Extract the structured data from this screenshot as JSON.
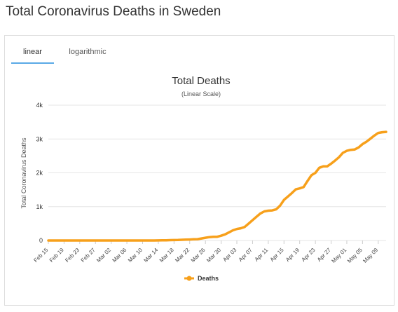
{
  "page": {
    "title": "Total Coronavirus Deaths in Sweden"
  },
  "tabs": [
    {
      "label": "linear",
      "active": true
    },
    {
      "label": "logarithmic",
      "active": false
    }
  ],
  "colors": {
    "series": "#f7a01b",
    "tab_active_underline": "#5aa9e6",
    "grid": "#e6e6e6"
  },
  "chart_data": {
    "type": "line",
    "title": "Total Deaths",
    "subtitle": "(Linear Scale)",
    "ylabel": "Total Coronavirus Deaths",
    "xlabel": "",
    "ylim": [
      0,
      4000
    ],
    "yticks": [
      0,
      1000,
      2000,
      3000,
      4000
    ],
    "ytick_labels": [
      "0",
      "1k",
      "2k",
      "3k",
      "4k"
    ],
    "grid": true,
    "legend": {
      "position": "bottom-center"
    },
    "x_tick_labels": [
      "Feb 15",
      "Feb 19",
      "Feb 23",
      "Feb 27",
      "Mar 02",
      "Mar 06",
      "Mar 10",
      "Mar 14",
      "Mar 18",
      "Mar 22",
      "Mar 26",
      "Mar 30",
      "Apr 03",
      "Apr 07",
      "Apr 11",
      "Apr 15",
      "Apr 19",
      "Apr 23",
      "Apr 27",
      "May 01",
      "May 05",
      "May 09"
    ],
    "x": [
      "Feb 15",
      "Feb 16",
      "Feb 17",
      "Feb 18",
      "Feb 19",
      "Feb 20",
      "Feb 21",
      "Feb 22",
      "Feb 23",
      "Feb 24",
      "Feb 25",
      "Feb 26",
      "Feb 27",
      "Feb 28",
      "Feb 29",
      "Mar 01",
      "Mar 02",
      "Mar 03",
      "Mar 04",
      "Mar 05",
      "Mar 06",
      "Mar 07",
      "Mar 08",
      "Mar 09",
      "Mar 10",
      "Mar 11",
      "Mar 12",
      "Mar 13",
      "Mar 14",
      "Mar 15",
      "Mar 16",
      "Mar 17",
      "Mar 18",
      "Mar 19",
      "Mar 20",
      "Mar 21",
      "Mar 22",
      "Mar 23",
      "Mar 24",
      "Mar 25",
      "Mar 26",
      "Mar 27",
      "Mar 28",
      "Mar 29",
      "Mar 30",
      "Mar 31",
      "Apr 01",
      "Apr 02",
      "Apr 03",
      "Apr 04",
      "Apr 05",
      "Apr 06",
      "Apr 07",
      "Apr 08",
      "Apr 09",
      "Apr 10",
      "Apr 11",
      "Apr 12",
      "Apr 13",
      "Apr 14",
      "Apr 15",
      "Apr 16",
      "Apr 17",
      "Apr 18",
      "Apr 19",
      "Apr 20",
      "Apr 21",
      "Apr 22",
      "Apr 23",
      "Apr 24",
      "Apr 25",
      "Apr 26",
      "Apr 27",
      "Apr 28",
      "Apr 29",
      "Apr 30",
      "May 01",
      "May 02",
      "May 03",
      "May 04",
      "May 05",
      "May 06",
      "May 07",
      "May 08",
      "May 09",
      "May 10",
      "May 11"
    ],
    "series": [
      {
        "name": "Deaths",
        "values": [
          0,
          0,
          0,
          0,
          0,
          0,
          0,
          0,
          0,
          0,
          0,
          0,
          0,
          0,
          0,
          0,
          0,
          0,
          0,
          0,
          0,
          0,
          0,
          0,
          0,
          0,
          1,
          1,
          3,
          6,
          7,
          10,
          12,
          15,
          20,
          25,
          30,
          35,
          40,
          60,
          80,
          100,
          110,
          110,
          140,
          180,
          240,
          300,
          340,
          360,
          400,
          500,
          600,
          700,
          800,
          860,
          880,
          890,
          920,
          1030,
          1200,
          1300,
          1400,
          1510,
          1540,
          1580,
          1760,
          1930,
          2000,
          2150,
          2190,
          2190,
          2270,
          2360,
          2460,
          2590,
          2650,
          2680,
          2690,
          2750,
          2850,
          2920,
          3010,
          3100,
          3180,
          3200,
          3210
        ]
      }
    ]
  }
}
